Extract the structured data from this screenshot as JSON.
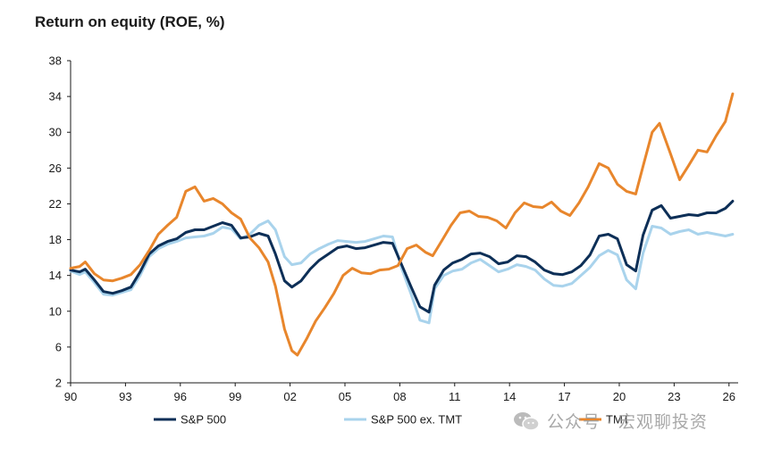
{
  "chart_data": {
    "type": "line",
    "title": "Return on equity (ROE, %)",
    "xlabel": "",
    "ylabel": "",
    "xlim": [
      1990,
      2026.5
    ],
    "ylim": [
      2,
      38
    ],
    "yticks": [
      2,
      6,
      10,
      14,
      18,
      22,
      26,
      30,
      34,
      38
    ],
    "xticks": [
      {
        "value": 1990,
        "label": "90"
      },
      {
        "value": 1993,
        "label": "93"
      },
      {
        "value": 1996,
        "label": "96"
      },
      {
        "value": 1999,
        "label": "99"
      },
      {
        "value": 2002,
        "label": "02"
      },
      {
        "value": 2005,
        "label": "05"
      },
      {
        "value": 2008,
        "label": "08"
      },
      {
        "value": 2011,
        "label": "11"
      },
      {
        "value": 2014,
        "label": "14"
      },
      {
        "value": 2017,
        "label": "17"
      },
      {
        "value": 2020,
        "label": "20"
      },
      {
        "value": 2023,
        "label": "23"
      },
      {
        "value": 2026,
        "label": "26"
      }
    ],
    "grid": false,
    "legend": "bottom",
    "series": [
      {
        "name": "S&P 500",
        "color": "#0d2f57",
        "points": [
          [
            1990.0,
            14.6
          ],
          [
            1990.5,
            14.4
          ],
          [
            1990.8,
            14.7
          ],
          [
            1991.3,
            13.5
          ],
          [
            1991.8,
            12.2
          ],
          [
            1992.3,
            12.0
          ],
          [
            1992.8,
            12.3
          ],
          [
            1993.3,
            12.7
          ],
          [
            1993.8,
            14.4
          ],
          [
            1994.3,
            16.4
          ],
          [
            1994.8,
            17.3
          ],
          [
            1995.3,
            17.8
          ],
          [
            1995.8,
            18.1
          ],
          [
            1996.3,
            18.8
          ],
          [
            1996.8,
            19.1
          ],
          [
            1997.3,
            19.1
          ],
          [
            1997.8,
            19.5
          ],
          [
            1998.3,
            19.9
          ],
          [
            1998.8,
            19.6
          ],
          [
            1999.3,
            18.2
          ],
          [
            1999.8,
            18.3
          ],
          [
            2000.3,
            18.7
          ],
          [
            2000.8,
            18.4
          ],
          [
            2001.2,
            16.4
          ],
          [
            2001.7,
            13.4
          ],
          [
            2002.1,
            12.7
          ],
          [
            2002.6,
            13.4
          ],
          [
            2003.1,
            14.7
          ],
          [
            2003.6,
            15.7
          ],
          [
            2004.1,
            16.4
          ],
          [
            2004.6,
            17.1
          ],
          [
            2005.1,
            17.3
          ],
          [
            2005.6,
            17.0
          ],
          [
            2006.1,
            17.1
          ],
          [
            2006.6,
            17.4
          ],
          [
            2007.1,
            17.7
          ],
          [
            2007.6,
            17.6
          ],
          [
            2008.1,
            15.2
          ],
          [
            2008.6,
            12.8
          ],
          [
            2009.1,
            10.5
          ],
          [
            2009.6,
            9.9
          ],
          [
            2009.9,
            12.9
          ],
          [
            2010.4,
            14.6
          ],
          [
            2010.9,
            15.4
          ],
          [
            2011.4,
            15.8
          ],
          [
            2011.9,
            16.4
          ],
          [
            2012.4,
            16.5
          ],
          [
            2012.9,
            16.1
          ],
          [
            2013.4,
            15.3
          ],
          [
            2013.9,
            15.5
          ],
          [
            2014.4,
            16.2
          ],
          [
            2014.9,
            16.1
          ],
          [
            2015.4,
            15.5
          ],
          [
            2015.9,
            14.6
          ],
          [
            2016.4,
            14.2
          ],
          [
            2016.9,
            14.1
          ],
          [
            2017.4,
            14.4
          ],
          [
            2017.9,
            15.1
          ],
          [
            2018.4,
            16.3
          ],
          [
            2018.9,
            18.4
          ],
          [
            2019.4,
            18.6
          ],
          [
            2019.9,
            18.1
          ],
          [
            2020.4,
            15.2
          ],
          [
            2020.9,
            14.5
          ],
          [
            2021.3,
            18.5
          ],
          [
            2021.8,
            21.3
          ],
          [
            2022.3,
            21.8
          ],
          [
            2022.8,
            20.4
          ],
          [
            2023.3,
            20.6
          ],
          [
            2023.8,
            20.8
          ],
          [
            2024.3,
            20.7
          ],
          [
            2024.8,
            21.0
          ],
          [
            2025.3,
            21.0
          ],
          [
            2025.8,
            21.5
          ],
          [
            2026.2,
            22.3
          ]
        ]
      },
      {
        "name": "S&P 500 ex. TMT",
        "color": "#a9d3ec",
        "points": [
          [
            1990.0,
            14.5
          ],
          [
            1990.5,
            14.1
          ],
          [
            1990.8,
            14.4
          ],
          [
            1991.3,
            13.2
          ],
          [
            1991.8,
            11.9
          ],
          [
            1992.3,
            11.8
          ],
          [
            1992.8,
            12.1
          ],
          [
            1993.3,
            12.4
          ],
          [
            1993.8,
            14.0
          ],
          [
            1994.3,
            16.1
          ],
          [
            1994.8,
            17.0
          ],
          [
            1995.3,
            17.5
          ],
          [
            1995.8,
            17.8
          ],
          [
            1996.3,
            18.2
          ],
          [
            1996.8,
            18.3
          ],
          [
            1997.3,
            18.4
          ],
          [
            1997.8,
            18.7
          ],
          [
            1998.3,
            19.4
          ],
          [
            1998.8,
            19.2
          ],
          [
            1999.3,
            18.1
          ],
          [
            1999.8,
            18.6
          ],
          [
            2000.3,
            19.6
          ],
          [
            2000.8,
            20.1
          ],
          [
            2001.2,
            19.1
          ],
          [
            2001.7,
            16.1
          ],
          [
            2002.1,
            15.2
          ],
          [
            2002.6,
            15.4
          ],
          [
            2003.1,
            16.4
          ],
          [
            2003.6,
            17.0
          ],
          [
            2004.1,
            17.5
          ],
          [
            2004.6,
            17.9
          ],
          [
            2005.1,
            17.8
          ],
          [
            2005.6,
            17.7
          ],
          [
            2006.1,
            17.8
          ],
          [
            2006.6,
            18.1
          ],
          [
            2007.1,
            18.4
          ],
          [
            2007.6,
            18.3
          ],
          [
            2008.1,
            14.8
          ],
          [
            2008.6,
            12.0
          ],
          [
            2009.1,
            9.0
          ],
          [
            2009.6,
            8.7
          ],
          [
            2009.9,
            12.5
          ],
          [
            2010.4,
            14.0
          ],
          [
            2010.9,
            14.5
          ],
          [
            2011.4,
            14.7
          ],
          [
            2011.9,
            15.4
          ],
          [
            2012.4,
            15.8
          ],
          [
            2012.9,
            15.1
          ],
          [
            2013.4,
            14.4
          ],
          [
            2013.9,
            14.7
          ],
          [
            2014.4,
            15.2
          ],
          [
            2014.9,
            15.0
          ],
          [
            2015.4,
            14.6
          ],
          [
            2015.9,
            13.6
          ],
          [
            2016.4,
            12.9
          ],
          [
            2016.9,
            12.8
          ],
          [
            2017.4,
            13.1
          ],
          [
            2017.9,
            14.0
          ],
          [
            2018.4,
            14.9
          ],
          [
            2018.9,
            16.2
          ],
          [
            2019.4,
            16.8
          ],
          [
            2019.9,
            16.3
          ],
          [
            2020.4,
            13.5
          ],
          [
            2020.9,
            12.5
          ],
          [
            2021.3,
            16.5
          ],
          [
            2021.8,
            19.5
          ],
          [
            2022.3,
            19.3
          ],
          [
            2022.8,
            18.6
          ],
          [
            2023.3,
            18.9
          ],
          [
            2023.8,
            19.1
          ],
          [
            2024.3,
            18.6
          ],
          [
            2024.8,
            18.8
          ],
          [
            2025.3,
            18.6
          ],
          [
            2025.8,
            18.4
          ],
          [
            2026.2,
            18.6
          ]
        ]
      },
      {
        "name": "TMT",
        "color": "#e8862c",
        "points": [
          [
            1990.0,
            14.8
          ],
          [
            1990.5,
            15.0
          ],
          [
            1990.8,
            15.5
          ],
          [
            1991.3,
            14.2
          ],
          [
            1991.8,
            13.5
          ],
          [
            1992.3,
            13.4
          ],
          [
            1992.8,
            13.7
          ],
          [
            1993.3,
            14.1
          ],
          [
            1993.8,
            15.2
          ],
          [
            1994.3,
            16.8
          ],
          [
            1994.8,
            18.6
          ],
          [
            1995.3,
            19.6
          ],
          [
            1995.8,
            20.5
          ],
          [
            1996.3,
            23.4
          ],
          [
            1996.8,
            23.9
          ],
          [
            1997.3,
            22.3
          ],
          [
            1997.8,
            22.6
          ],
          [
            1998.3,
            22.0
          ],
          [
            1998.8,
            21.0
          ],
          [
            1999.3,
            20.3
          ],
          [
            1999.8,
            18.2
          ],
          [
            2000.3,
            17.1
          ],
          [
            2000.8,
            15.5
          ],
          [
            2001.2,
            12.8
          ],
          [
            2001.7,
            8.0
          ],
          [
            2002.1,
            5.6
          ],
          [
            2002.4,
            5.1
          ],
          [
            2002.9,
            6.9
          ],
          [
            2003.4,
            8.9
          ],
          [
            2003.9,
            10.4
          ],
          [
            2004.4,
            12.0
          ],
          [
            2004.9,
            14.0
          ],
          [
            2005.4,
            14.8
          ],
          [
            2005.9,
            14.3
          ],
          [
            2006.4,
            14.2
          ],
          [
            2006.9,
            14.6
          ],
          [
            2007.4,
            14.7
          ],
          [
            2007.9,
            15.1
          ],
          [
            2008.4,
            17.0
          ],
          [
            2008.9,
            17.4
          ],
          [
            2009.4,
            16.6
          ],
          [
            2009.8,
            16.2
          ],
          [
            2010.3,
            17.9
          ],
          [
            2010.8,
            19.6
          ],
          [
            2011.3,
            21.0
          ],
          [
            2011.8,
            21.2
          ],
          [
            2012.3,
            20.6
          ],
          [
            2012.8,
            20.5
          ],
          [
            2013.3,
            20.1
          ],
          [
            2013.8,
            19.3
          ],
          [
            2014.3,
            21.0
          ],
          [
            2014.8,
            22.1
          ],
          [
            2015.3,
            21.7
          ],
          [
            2015.8,
            21.6
          ],
          [
            2016.3,
            22.2
          ],
          [
            2016.8,
            21.2
          ],
          [
            2017.3,
            20.7
          ],
          [
            2017.8,
            22.1
          ],
          [
            2018.3,
            23.9
          ],
          [
            2018.9,
            26.5
          ],
          [
            2019.4,
            26.0
          ],
          [
            2019.9,
            24.2
          ],
          [
            2020.4,
            23.4
          ],
          [
            2020.9,
            23.1
          ],
          [
            2021.3,
            26.2
          ],
          [
            2021.8,
            30.0
          ],
          [
            2022.2,
            31.0
          ],
          [
            2022.8,
            27.6
          ],
          [
            2023.3,
            24.7
          ],
          [
            2023.8,
            26.3
          ],
          [
            2024.3,
            28.0
          ],
          [
            2024.8,
            27.8
          ],
          [
            2025.3,
            29.6
          ],
          [
            2025.8,
            31.2
          ],
          [
            2026.2,
            34.3
          ]
        ]
      }
    ]
  },
  "watermark": "公众号 · 宏观聊投资"
}
